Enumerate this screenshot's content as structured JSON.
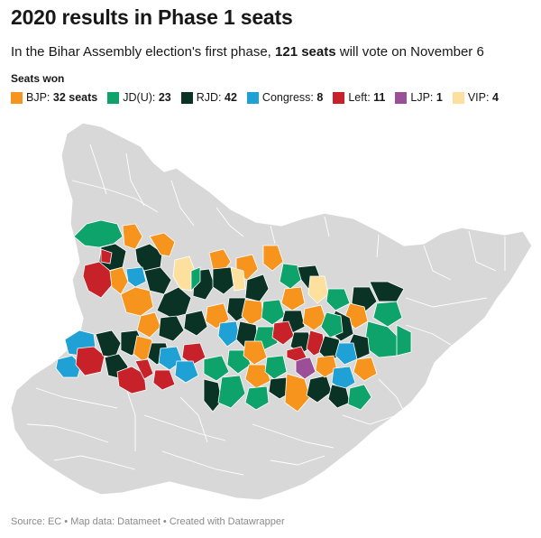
{
  "title": "2020 results in Phase 1 seats",
  "subtitle": {
    "prefix": "In the Bihar Assembly election's first phase, ",
    "highlight": "121 seats",
    "suffix": " will vote on November 6"
  },
  "legend_title": "Seats won",
  "legend": [
    {
      "party": "BJP",
      "label": "BJP:",
      "count": "32 seats",
      "color": "#f7941d"
    },
    {
      "party": "JDU",
      "label": "JD(U):",
      "count": "23",
      "color": "#0fa36c"
    },
    {
      "party": "RJD",
      "label": "RJD:",
      "count": "42",
      "color": "#0a3326"
    },
    {
      "party": "Congress",
      "label": "Congress:",
      "count": "8",
      "color": "#1fa1d6"
    },
    {
      "party": "Left",
      "label": "Left:",
      "count": "11",
      "color": "#c7222a"
    },
    {
      "party": "LJP",
      "label": "LJP:",
      "count": "1",
      "color": "#9b4f96"
    },
    {
      "party": "VIP",
      "label": "VIP:",
      "count": "4",
      "color": "#fddf9e"
    }
  ],
  "map": {
    "state_fill": "#d8d8d8",
    "region": "Bihar",
    "phase": "Phase 1"
  },
  "footer": "Source: EC • Map data: Datameet • Created with Datawrapper"
}
